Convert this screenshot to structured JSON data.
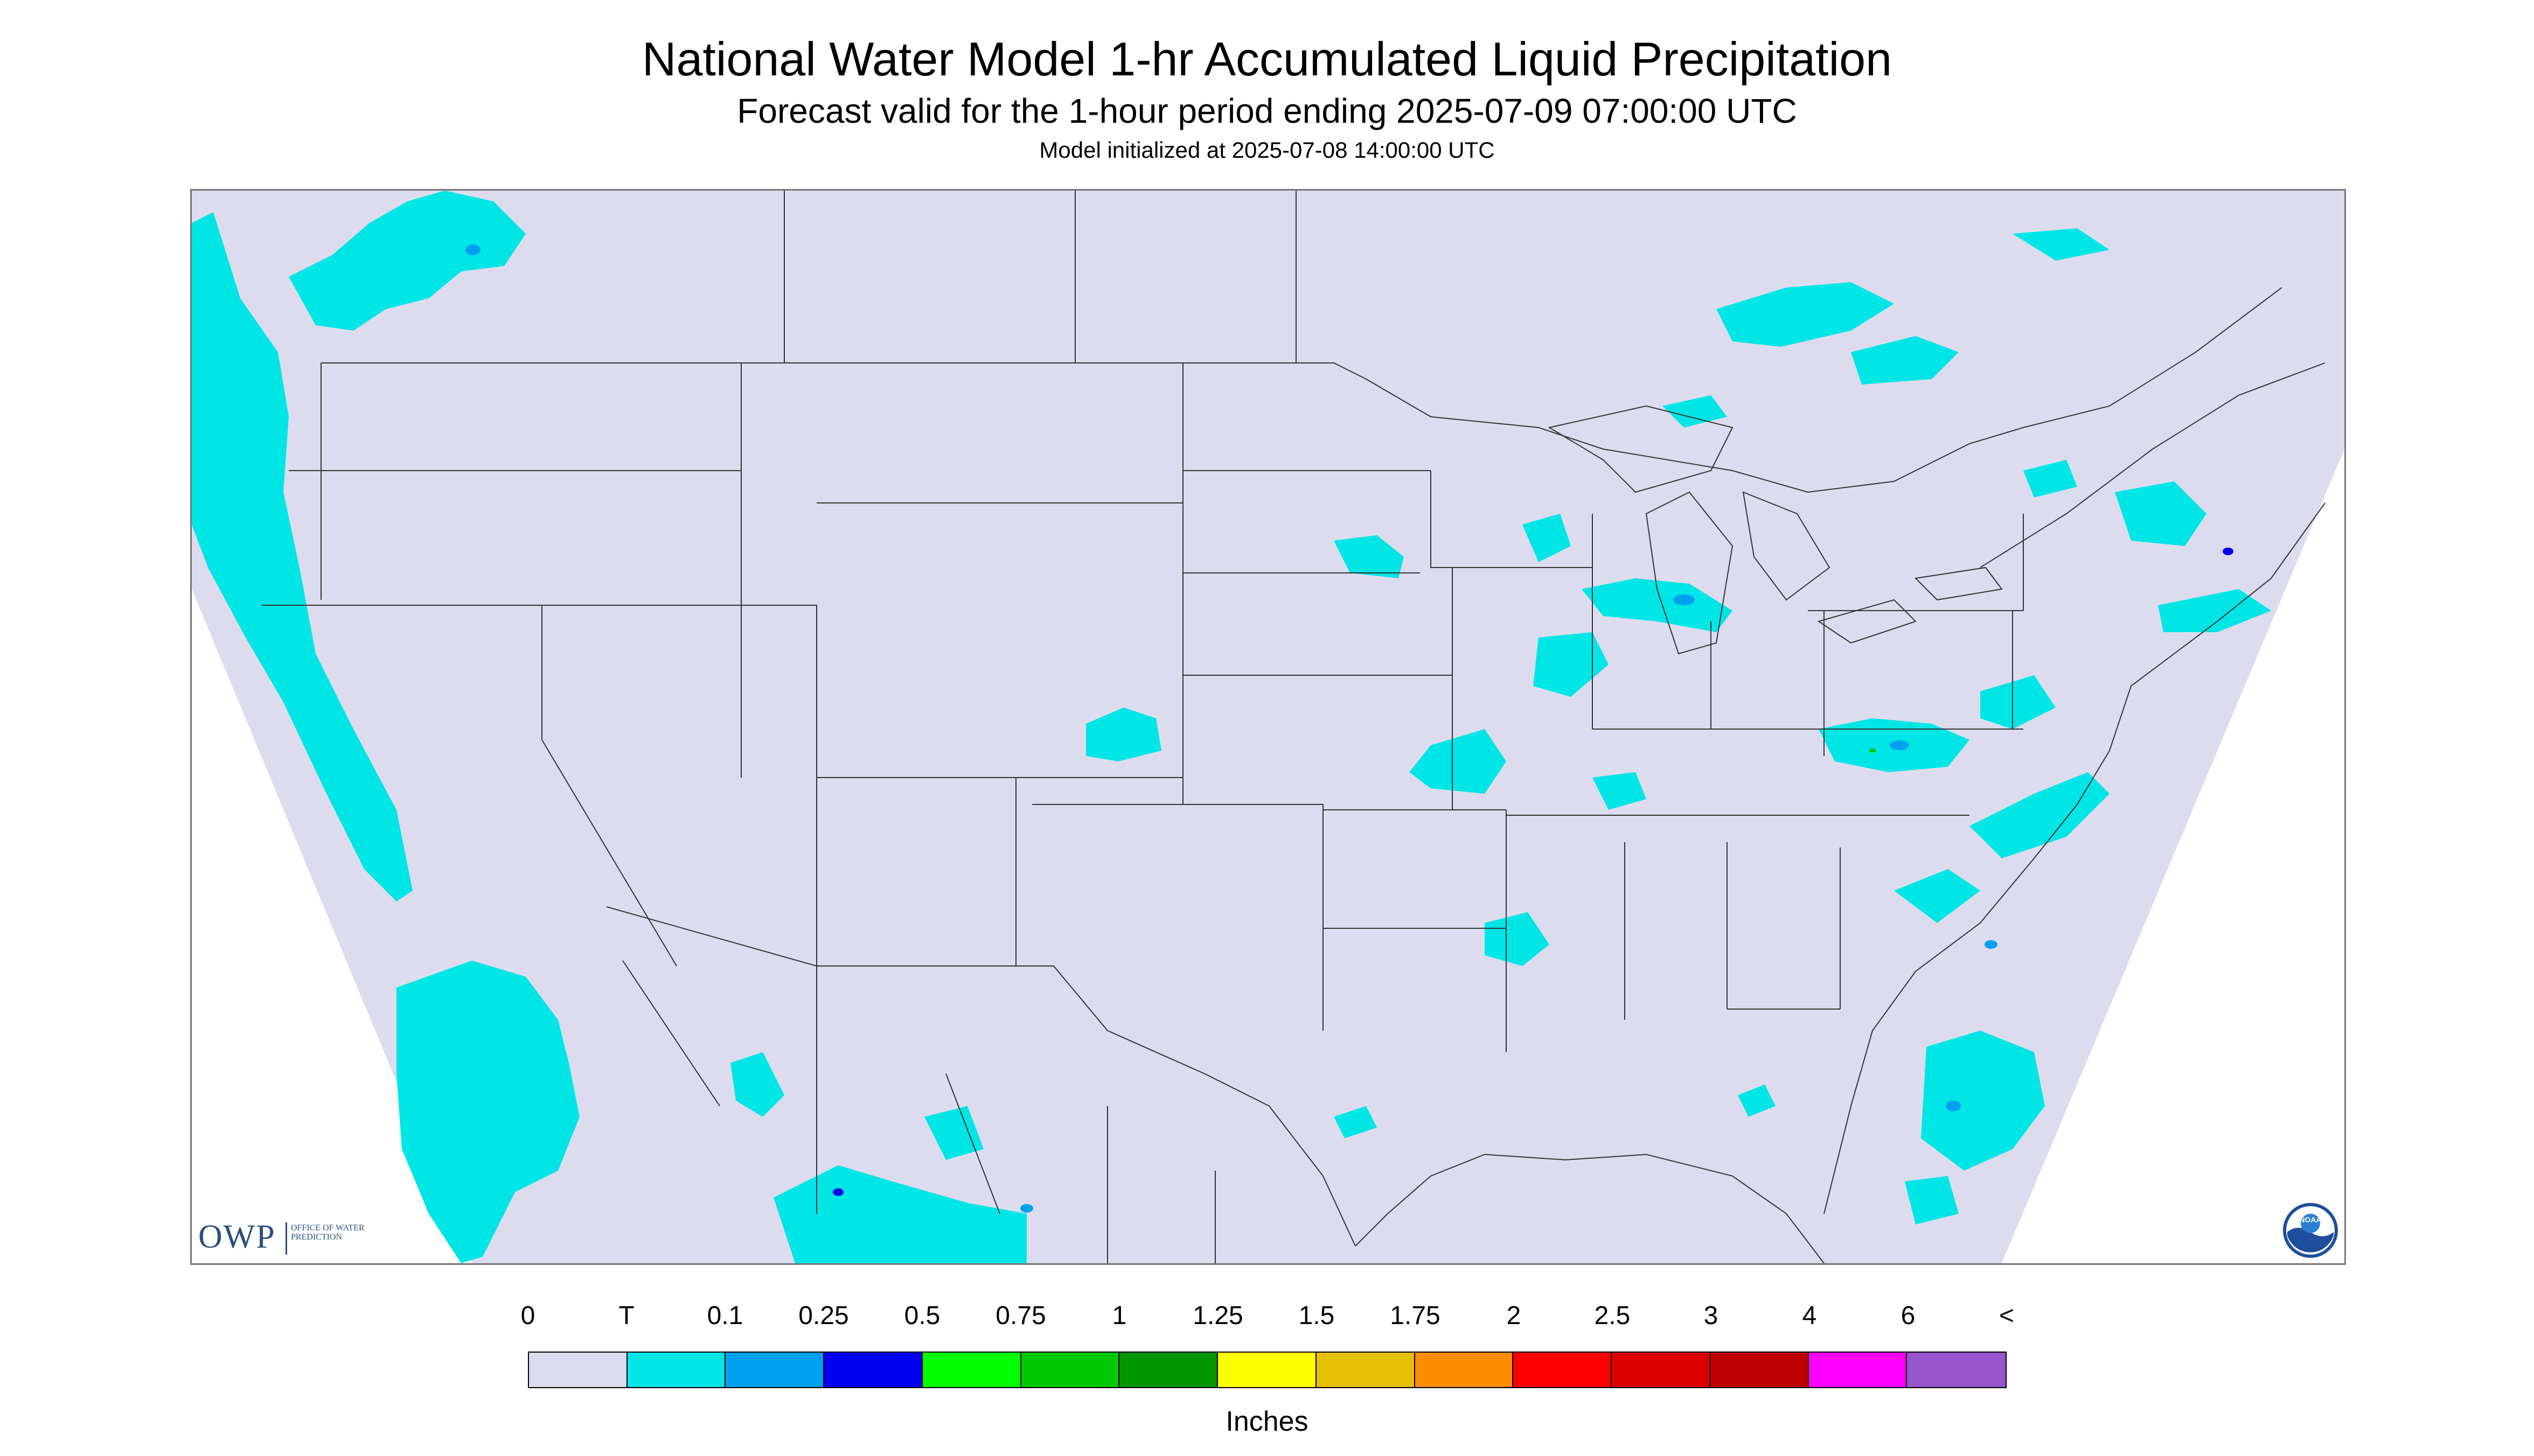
{
  "header": {
    "title": "National Water Model 1-hr Accumulated Liquid Precipitation",
    "subtitle": "Forecast valid for the 1-hour period ending 2025-07-09 07:00:00 UTC",
    "init": "Model initialized at 2025-07-08 14:00:00 UTC"
  },
  "colors": {
    "land": "#dcdcee",
    "outside": "#ffffff",
    "border_lines": "#333333",
    "trace": "#00e5e5"
  },
  "logos": {
    "owp_letters": "OWP",
    "owp_text": "OFFICE OF WATER PREDICTION",
    "noaa_text": "NOAA"
  },
  "legend": {
    "units": "Inches",
    "labels": [
      "0",
      "T",
      "0.1",
      "0.25",
      "0.5",
      "0.75",
      "1",
      "1.25",
      "1.5",
      "1.75",
      "2",
      "2.5",
      "3",
      "4",
      "6",
      "<"
    ],
    "colors": [
      "#dcdcee",
      "#00e5e5",
      "#00a0f0",
      "#0000f0",
      "#00ff00",
      "#00c800",
      "#009600",
      "#ffff00",
      "#e6c000",
      "#ff8c00",
      "#ff0000",
      "#dc0000",
      "#be0000",
      "#ff00ff",
      "#9955cc"
    ]
  }
}
